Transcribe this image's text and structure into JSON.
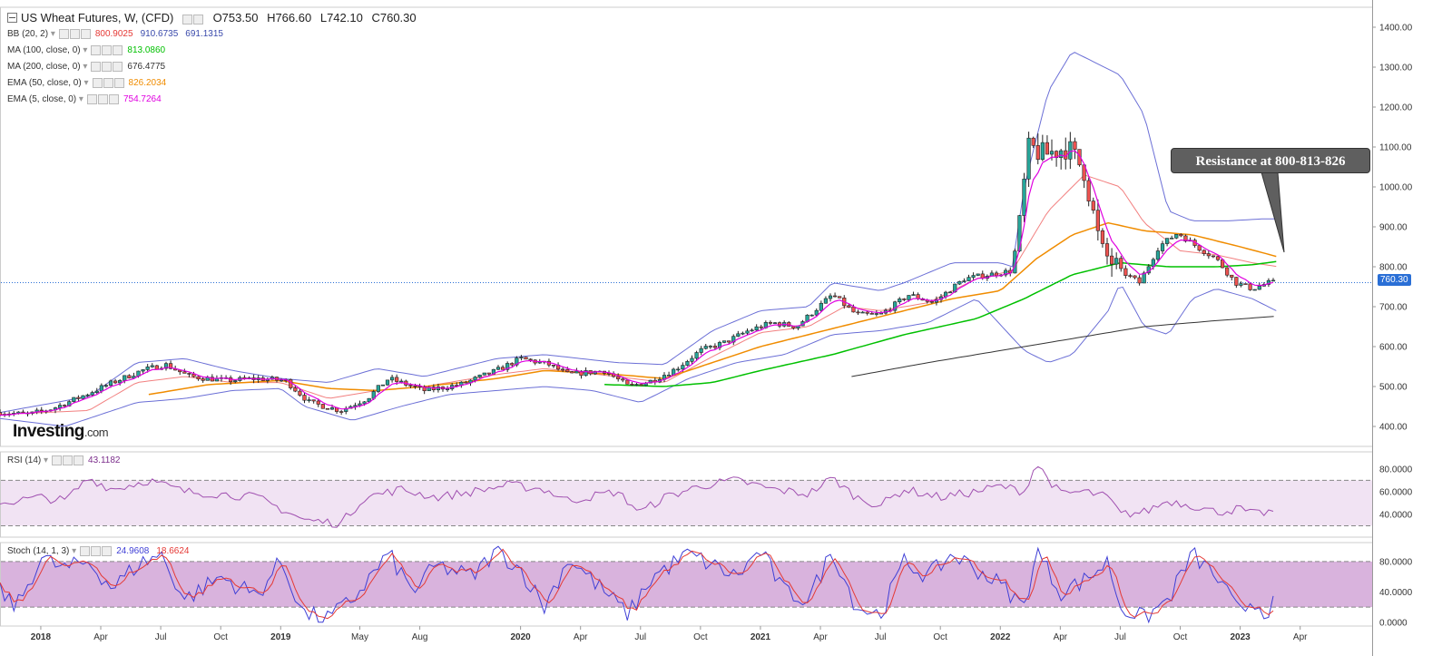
{
  "header": {
    "title": "US Wheat Futures, W, (CFD)",
    "open": "O753.50",
    "high": "H766.60",
    "low": "L742.10",
    "close": "C760.30"
  },
  "legend": [
    {
      "label": "BB (20, 2)",
      "values": [
        {
          "text": "800.9025",
          "color": "#e53935"
        },
        {
          "text": "910.6735",
          "color": "#3949ab"
        },
        {
          "text": "691.1315",
          "color": "#3949ab"
        }
      ]
    },
    {
      "label": "MA (100, close, 0)",
      "values": [
        {
          "text": "813.0860",
          "color": "#00c000"
        }
      ]
    },
    {
      "label": "MA (200, close, 0)",
      "values": [
        {
          "text": "676.4775",
          "color": "#333333"
        }
      ]
    },
    {
      "label": "EMA (50, close, 0)",
      "values": [
        {
          "text": "826.2034",
          "color": "#f08c00"
        }
      ]
    },
    {
      "label": "EMA (5, close, 0)",
      "values": [
        {
          "text": "754.7264",
          "color": "#e000e0"
        }
      ]
    }
  ],
  "rsi_legend": {
    "label": "RSI (14)",
    "value": "43.1182",
    "color": "#7b2d8b"
  },
  "stoch_legend": {
    "label": "Stoch (14, 1, 3)",
    "k": "24.9608",
    "d": "18.6624",
    "k_color": "#3f3fd6",
    "d_color": "#e53935"
  },
  "logo": {
    "main": "Investing",
    "suffix": ".com"
  },
  "callout": {
    "text": "Resistance at 800-813-826"
  },
  "price_tag": "760.30",
  "colors": {
    "up": "#26a69a",
    "down": "#ef5350",
    "bb": "#6b6fd6",
    "bb_mid": "#f28080",
    "ma100": "#00c000",
    "ma200": "#333333",
    "ema50": "#f08c00",
    "ema5": "#e000e0",
    "rsi": "#a050b0",
    "stoch_band": "#d9b3dd"
  },
  "chart_data": [
    {
      "type": "candlestick",
      "name": "US Wheat Futures, W, (CFD)",
      "x_ticks": [
        "2018",
        "Apr",
        "Jul",
        "Oct",
        "2019",
        "May",
        "Aug",
        "2020",
        "Apr",
        "Jul",
        "Oct",
        "2021",
        "Apr",
        "Jul",
        "Oct",
        "2022",
        "Apr",
        "Jul",
        "Oct",
        "2023",
        "Apr"
      ],
      "x_tick_fraction": [
        0.0,
        0.25,
        0.5,
        0.75,
        1.0,
        1.33,
        1.58,
        2.0,
        2.25,
        2.5,
        2.75,
        3.0,
        3.25,
        3.5,
        3.75,
        4.0,
        4.25,
        4.5,
        4.75,
        5.0,
        5.25
      ],
      "y_ticks": [
        400,
        500,
        600,
        700,
        800,
        900,
        1000,
        1100,
        1200,
        1300,
        1400
      ],
      "ylim": [
        350,
        1450
      ],
      "xlim_years": [
        -0.17,
        5.55
      ],
      "price_anchor": [
        [
          -0.17,
          435
        ],
        [
          -0.05,
          430
        ],
        [
          0.05,
          445
        ],
        [
          0.15,
          470
        ],
        [
          0.3,
          510
        ],
        [
          0.42,
          540
        ],
        [
          0.52,
          555
        ],
        [
          0.62,
          525
        ],
        [
          0.78,
          515
        ],
        [
          0.9,
          520
        ],
        [
          1.02,
          515
        ],
        [
          1.12,
          460
        ],
        [
          1.25,
          440
        ],
        [
          1.36,
          470
        ],
        [
          1.45,
          520
        ],
        [
          1.6,
          490
        ],
        [
          1.75,
          505
        ],
        [
          1.9,
          540
        ],
        [
          2.0,
          570
        ],
        [
          2.12,
          555
        ],
        [
          2.2,
          530
        ],
        [
          2.35,
          540
        ],
        [
          2.45,
          500
        ],
        [
          2.55,
          515
        ],
        [
          2.65,
          545
        ],
        [
          2.75,
          590
        ],
        [
          2.85,
          610
        ],
        [
          2.95,
          640
        ],
        [
          3.05,
          660
        ],
        [
          3.15,
          650
        ],
        [
          3.3,
          730
        ],
        [
          3.4,
          680
        ],
        [
          3.5,
          680
        ],
        [
          3.62,
          730
        ],
        [
          3.72,
          710
        ],
        [
          3.85,
          770
        ],
        [
          3.95,
          780
        ],
        [
          4.05,
          790
        ],
        [
          4.12,
          1100
        ],
        [
          4.18,
          1080
        ],
        [
          4.28,
          1100
        ],
        [
          4.35,
          1040
        ],
        [
          4.42,
          840
        ],
        [
          4.5,
          790
        ],
        [
          4.58,
          760
        ],
        [
          4.66,
          850
        ],
        [
          4.74,
          885
        ],
        [
          4.82,
          850
        ],
        [
          4.9,
          820
        ],
        [
          4.98,
          760
        ],
        [
          5.05,
          745
        ],
        [
          5.12,
          760
        ]
      ],
      "bb_upper": [
        [
          -0.17,
          435
        ],
        [
          0.2,
          475
        ],
        [
          0.4,
          560
        ],
        [
          0.6,
          570
        ],
        [
          0.8,
          540
        ],
        [
          1.0,
          520
        ],
        [
          1.2,
          510
        ],
        [
          1.4,
          545
        ],
        [
          1.6,
          525
        ],
        [
          1.9,
          570
        ],
        [
          2.1,
          580
        ],
        [
          2.4,
          560
        ],
        [
          2.6,
          555
        ],
        [
          2.8,
          640
        ],
        [
          3.0,
          690
        ],
        [
          3.2,
          700
        ],
        [
          3.3,
          760
        ],
        [
          3.5,
          740
        ],
        [
          3.6,
          760
        ],
        [
          3.8,
          810
        ],
        [
          4.0,
          810
        ],
        [
          4.05,
          800
        ],
        [
          4.1,
          1000
        ],
        [
          4.2,
          1240
        ],
        [
          4.3,
          1340
        ],
        [
          4.5,
          1280
        ],
        [
          4.6,
          1180
        ],
        [
          4.7,
          940
        ],
        [
          4.8,
          915
        ],
        [
          4.95,
          915
        ],
        [
          5.1,
          920
        ]
      ],
      "bb_lower": [
        [
          -0.17,
          420
        ],
        [
          0.1,
          400
        ],
        [
          0.4,
          460
        ],
        [
          0.6,
          470
        ],
        [
          0.8,
          490
        ],
        [
          1.0,
          495
        ],
        [
          1.1,
          450
        ],
        [
          1.3,
          415
        ],
        [
          1.5,
          450
        ],
        [
          1.7,
          480
        ],
        [
          1.9,
          490
        ],
        [
          2.1,
          500
        ],
        [
          2.3,
          490
        ],
        [
          2.5,
          460
        ],
        [
          2.7,
          520
        ],
        [
          2.9,
          560
        ],
        [
          3.1,
          580
        ],
        [
          3.3,
          630
        ],
        [
          3.5,
          640
        ],
        [
          3.7,
          660
        ],
        [
          3.9,
          720
        ],
        [
          4.1,
          590
        ],
        [
          4.2,
          560
        ],
        [
          4.3,
          580
        ],
        [
          4.45,
          690
        ],
        [
          4.5,
          760
        ],
        [
          4.6,
          650
        ],
        [
          4.7,
          630
        ],
        [
          4.8,
          720
        ],
        [
          4.9,
          745
        ],
        [
          5.05,
          720
        ],
        [
          5.15,
          690
        ]
      ],
      "bb_mid": [
        [
          -0.17,
          430
        ],
        [
          0.2,
          440
        ],
        [
          0.4,
          510
        ],
        [
          0.6,
          525
        ],
        [
          0.8,
          510
        ],
        [
          1.0,
          510
        ],
        [
          1.2,
          470
        ],
        [
          1.4,
          490
        ],
        [
          1.6,
          500
        ],
        [
          1.9,
          530
        ],
        [
          2.1,
          545
        ],
        [
          2.4,
          525
        ],
        [
          2.6,
          510
        ],
        [
          2.8,
          575
        ],
        [
          3.0,
          635
        ],
        [
          3.2,
          650
        ],
        [
          3.35,
          700
        ],
        [
          3.5,
          690
        ],
        [
          3.7,
          710
        ],
        [
          3.9,
          770
        ],
        [
          4.05,
          790
        ],
        [
          4.2,
          940
        ],
        [
          4.35,
          1030
        ],
        [
          4.5,
          1000
        ],
        [
          4.6,
          910
        ],
        [
          4.75,
          840
        ],
        [
          4.9,
          830
        ],
        [
          5.05,
          810
        ],
        [
          5.15,
          801
        ]
      ],
      "ma100": [
        [
          2.35,
          505
        ],
        [
          2.6,
          500
        ],
        [
          2.8,
          510
        ],
        [
          3.0,
          540
        ],
        [
          3.3,
          580
        ],
        [
          3.6,
          630
        ],
        [
          3.9,
          670
        ],
        [
          4.1,
          720
        ],
        [
          4.3,
          780
        ],
        [
          4.5,
          810
        ],
        [
          4.7,
          800
        ],
        [
          4.9,
          800
        ],
        [
          5.05,
          805
        ],
        [
          5.15,
          813
        ]
      ],
      "ma200": [
        [
          3.38,
          525
        ],
        [
          3.7,
          560
        ],
        [
          4.0,
          590
        ],
        [
          4.3,
          620
        ],
        [
          4.6,
          650
        ],
        [
          4.9,
          665
        ],
        [
          5.15,
          676
        ]
      ],
      "ema50": [
        [
          0.45,
          480
        ],
        [
          0.7,
          505
        ],
        [
          1.0,
          515
        ],
        [
          1.2,
          495
        ],
        [
          1.4,
          490
        ],
        [
          1.6,
          500
        ],
        [
          1.9,
          520
        ],
        [
          2.1,
          540
        ],
        [
          2.4,
          530
        ],
        [
          2.6,
          520
        ],
        [
          2.8,
          560
        ],
        [
          3.0,
          600
        ],
        [
          3.2,
          630
        ],
        [
          3.4,
          660
        ],
        [
          3.6,
          690
        ],
        [
          3.8,
          720
        ],
        [
          4.0,
          740
        ],
        [
          4.15,
          820
        ],
        [
          4.3,
          880
        ],
        [
          4.45,
          910
        ],
        [
          4.6,
          890
        ],
        [
          4.8,
          880
        ],
        [
          5.0,
          850
        ],
        [
          5.15,
          826
        ]
      ],
      "ema5_note": "follows price closely",
      "last_price": 760.3
    },
    {
      "type": "line",
      "name": "RSI (14)",
      "y_ticks": [
        40,
        60,
        80
      ],
      "ylim": [
        20,
        95
      ],
      "band": [
        30,
        70
      ],
      "values_anchor": [
        [
          -0.17,
          50
        ],
        [
          0.0,
          55
        ],
        [
          0.1,
          52
        ],
        [
          0.2,
          72
        ],
        [
          0.3,
          62
        ],
        [
          0.45,
          70
        ],
        [
          0.6,
          60
        ],
        [
          0.75,
          58
        ],
        [
          0.9,
          55
        ],
        [
          1.0,
          45
        ],
        [
          1.1,
          35
        ],
        [
          1.25,
          32
        ],
        [
          1.35,
          55
        ],
        [
          1.5,
          62
        ],
        [
          1.65,
          55
        ],
        [
          1.8,
          60
        ],
        [
          1.95,
          66
        ],
        [
          2.1,
          62
        ],
        [
          2.2,
          52
        ],
        [
          2.4,
          60
        ],
        [
          2.5,
          42
        ],
        [
          2.6,
          55
        ],
        [
          2.75,
          65
        ],
        [
          2.9,
          70
        ],
        [
          3.05,
          62
        ],
        [
          3.2,
          58
        ],
        [
          3.3,
          72
        ],
        [
          3.4,
          55
        ],
        [
          3.5,
          48
        ],
        [
          3.6,
          62
        ],
        [
          3.75,
          55
        ],
        [
          3.9,
          60
        ],
        [
          4.0,
          65
        ],
        [
          4.1,
          60
        ],
        [
          4.15,
          85
        ],
        [
          4.25,
          58
        ],
        [
          4.35,
          60
        ],
        [
          4.45,
          55
        ],
        [
          4.5,
          40
        ],
        [
          4.6,
          42
        ],
        [
          4.7,
          52
        ],
        [
          4.8,
          48
        ],
        [
          4.9,
          42
        ],
        [
          5.0,
          45
        ],
        [
          5.05,
          40
        ],
        [
          5.15,
          43
        ]
      ],
      "last_value": 43.1182
    },
    {
      "type": "line",
      "name": "Stoch (14, 1, 3)",
      "y_ticks": [
        0,
        20,
        40,
        60,
        80
      ],
      "y_tick_labels": [
        "0.0000",
        "",
        "40.0000",
        "",
        "80.0000"
      ],
      "ylim": [
        -5,
        105
      ],
      "band": [
        20,
        80
      ],
      "k_last": 24.9608,
      "d_last": 18.6624,
      "k_anchor": [
        [
          -0.17,
          40
        ],
        [
          -0.1,
          20
        ],
        [
          0.0,
          85
        ],
        [
          0.1,
          70
        ],
        [
          0.2,
          80
        ],
        [
          0.3,
          45
        ],
        [
          0.4,
          75
        ],
        [
          0.5,
          90
        ],
        [
          0.6,
          30
        ],
        [
          0.75,
          60
        ],
        [
          0.9,
          35
        ],
        [
          1.0,
          80
        ],
        [
          1.1,
          10
        ],
        [
          1.2,
          5
        ],
        [
          1.3,
          30
        ],
        [
          1.45,
          90
        ],
        [
          1.55,
          40
        ],
        [
          1.65,
          75
        ],
        [
          1.8,
          60
        ],
        [
          1.9,
          95
        ],
        [
          2.0,
          70
        ],
        [
          2.1,
          20
        ],
        [
          2.2,
          85
        ],
        [
          2.35,
          40
        ],
        [
          2.45,
          10
        ],
        [
          2.55,
          60
        ],
        [
          2.7,
          90
        ],
        [
          2.8,
          75
        ],
        [
          2.9,
          60
        ],
        [
          3.0,
          95
        ],
        [
          3.1,
          40
        ],
        [
          3.2,
          30
        ],
        [
          3.3,
          95
        ],
        [
          3.4,
          20
        ],
        [
          3.5,
          10
        ],
        [
          3.6,
          80
        ],
        [
          3.7,
          60
        ],
        [
          3.8,
          90
        ],
        [
          3.9,
          70
        ],
        [
          4.0,
          50
        ],
        [
          4.1,
          20
        ],
        [
          4.15,
          95
        ],
        [
          4.25,
          40
        ],
        [
          4.35,
          55
        ],
        [
          4.45,
          80
        ],
        [
          4.5,
          20
        ],
        [
          4.6,
          5
        ],
        [
          4.7,
          30
        ],
        [
          4.8,
          90
        ],
        [
          4.9,
          60
        ],
        [
          5.0,
          10
        ],
        [
          5.05,
          30
        ],
        [
          5.1,
          15
        ],
        [
          5.15,
          25
        ]
      ]
    }
  ]
}
